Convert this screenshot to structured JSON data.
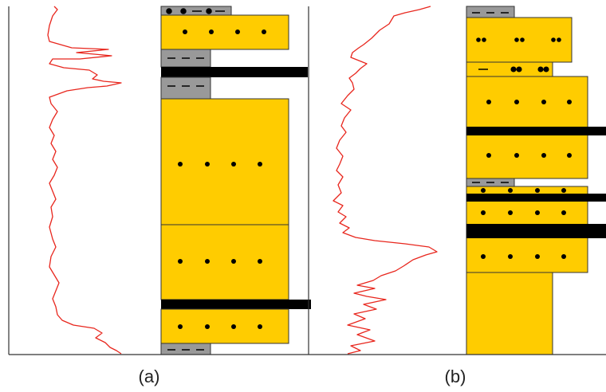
{
  "panels": [
    {
      "id": "a",
      "caption": "(a)"
    },
    {
      "id": "b",
      "caption": "(b)"
    }
  ],
  "colors": {
    "sandstone": "#FFCC00",
    "mudstone": "#999999",
    "coal": "#000000",
    "log_curve": "#E8261D",
    "frame": "#333333",
    "outline": "#333333"
  },
  "legend_symbols": {
    "sandstone": "dot-pattern",
    "mudstone": "dash-pattern",
    "coal": "solid-black-band",
    "conglomerate_sand": "double-dot-pattern",
    "silty_mud": "dot-dash-pattern"
  }
}
